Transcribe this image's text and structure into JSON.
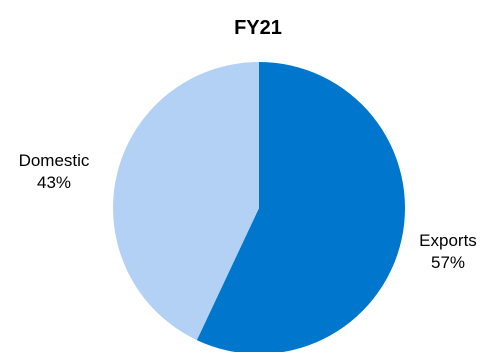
{
  "chart_data": {
    "type": "pie",
    "title": "FY21",
    "start_angle_deg": 0,
    "direction": "clockwise",
    "slices": [
      {
        "label": "Exports",
        "value": 57,
        "value_label": "57%",
        "color": "#0077CC"
      },
      {
        "label": "Domestic",
        "value": 43,
        "value_label": "43%",
        "color": "#B3D1F5"
      }
    ],
    "legend": "none"
  }
}
